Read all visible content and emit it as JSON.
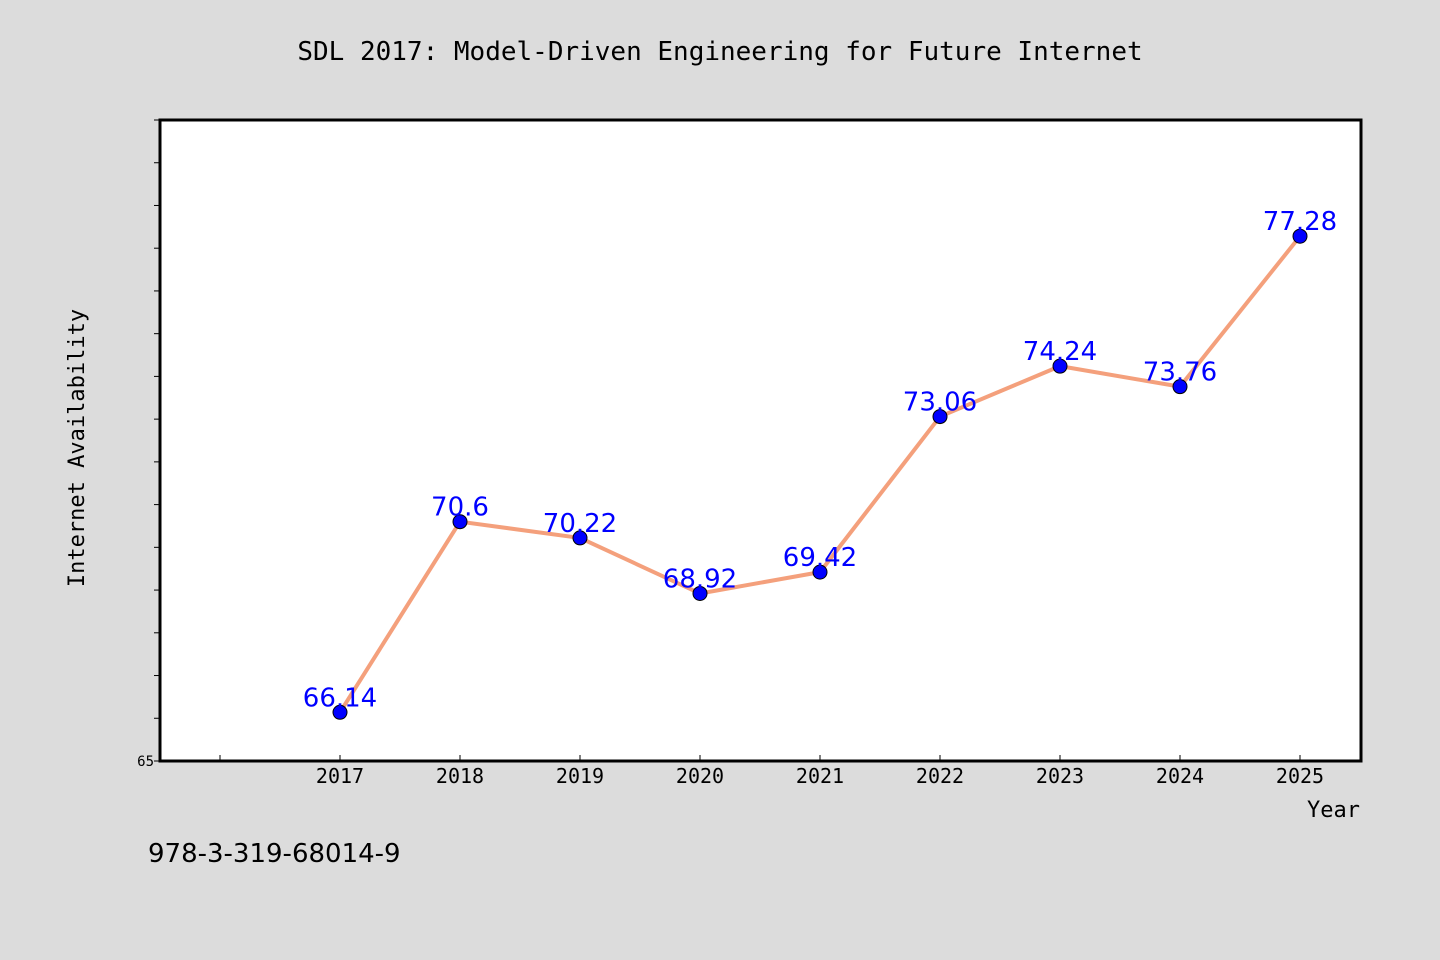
{
  "chart_data": {
    "type": "line",
    "title": "SDL 2017: Model-Driven Engineering for Future Internet",
    "xlabel": "Year",
    "ylabel": "Internet Availability",
    "categories": [
      "2017",
      "2018",
      "2019",
      "2020",
      "2021",
      "2022",
      "2023",
      "2024",
      "2025"
    ],
    "series": [
      {
        "values": [
          66.14,
          70.6,
          70.22,
          68.92,
          69.42,
          73.06,
          74.24,
          73.76,
          77.28
        ],
        "labels": [
          "66.14",
          "70.6",
          "70.22",
          "68.92",
          "69.42",
          "73.06",
          "74.24",
          "73.76",
          "77.28"
        ]
      }
    ],
    "ylim": [
      65,
      80
    ],
    "ytick_labels": [
      "65"
    ],
    "grid": false,
    "line_color": "#f4a07c",
    "marker_color": "#0000ff",
    "label_color": "#0000ff"
  },
  "footer": {
    "isbn": "978-3-319-68014-9"
  }
}
